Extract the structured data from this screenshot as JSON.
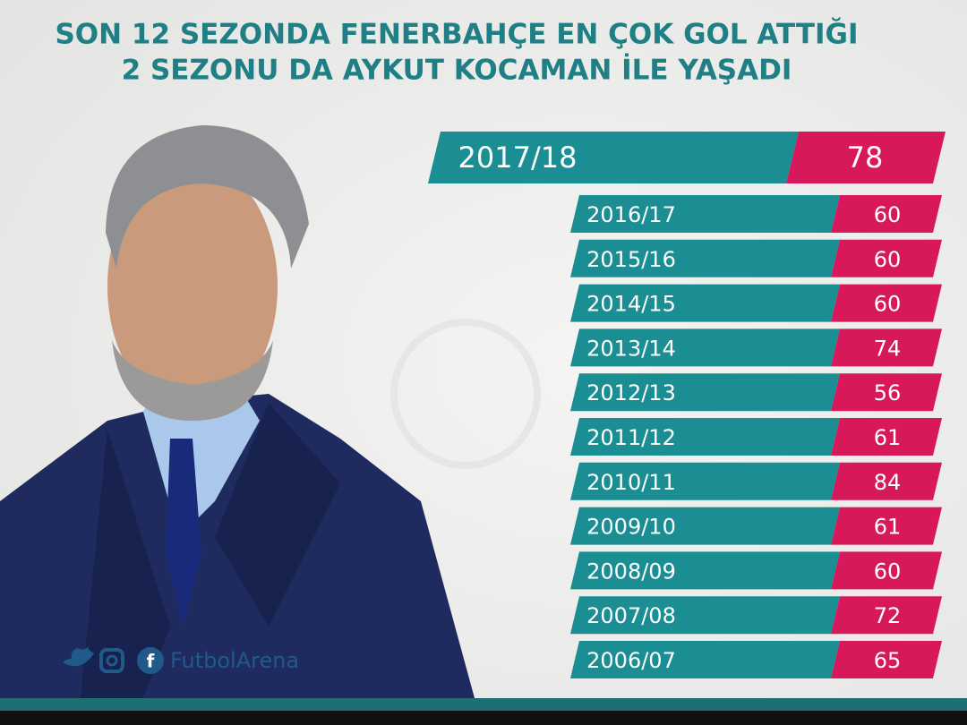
{
  "header": {
    "title_lines": [
      "SON 12 SEZONDA FENERBAHÇE EN ÇOK GOL ATTIĞI",
      "2 SEZONU DA AYKUT KOCAMAN İLE YAŞADI"
    ]
  },
  "rows": [
    {
      "season": "2017/18",
      "goals": 78
    },
    {
      "season": "2016/17",
      "goals": 60
    },
    {
      "season": "2015/16",
      "goals": 60
    },
    {
      "season": "2014/15",
      "goals": 60
    },
    {
      "season": "2013/14",
      "goals": 74
    },
    {
      "season": "2012/13",
      "goals": 56
    },
    {
      "season": "2011/12",
      "goals": 61
    },
    {
      "season": "2010/11",
      "goals": 84
    },
    {
      "season": "2009/10",
      "goals": 61
    },
    {
      "season": "2008/09",
      "goals": 60
    },
    {
      "season": "2007/08",
      "goals": 72
    },
    {
      "season": "2006/07",
      "goals": 65
    }
  ],
  "footer": {
    "brand": "FutbolArena"
  }
}
